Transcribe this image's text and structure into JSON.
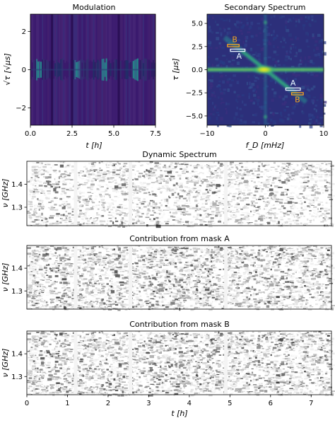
{
  "chart_data": [
    {
      "type": "heatmap",
      "title": "Modulation",
      "xlabel": "t [h]",
      "ylabel": "√τ [√μs]",
      "xlim": [
        0,
        7.5
      ],
      "ylim": [
        -2.9,
        2.9
      ],
      "x_ticks": [
        0,
        2.5,
        5,
        7.5
      ],
      "x_tick_labels": [
        "0.0",
        "2.5",
        "5.0",
        "7.5"
      ],
      "y_ticks": [
        2,
        0,
        -2
      ],
      "y_tick_labels": [
        "2",
        "0",
        "−2"
      ],
      "colormap": "viridis",
      "dark_vertical_gaps_h": [
        1.3,
        2.5,
        5.3
      ],
      "bright_segments_h": [
        0.5,
        2.8,
        4.4,
        6.3
      ]
    },
    {
      "type": "heatmap",
      "title": "Secondary Spectrum",
      "xlabel": "f_D [mHz]",
      "ylabel": "τ [μs]",
      "xlim": [
        -10,
        10
      ],
      "ylim": [
        -6,
        6
      ],
      "x_ticks": [
        -10,
        0,
        10
      ],
      "x_tick_labels": [
        "−10",
        "0",
        "10"
      ],
      "y_ticks": [
        5.0,
        2.5,
        0.0,
        -2.5,
        -5.0
      ],
      "y_tick_labels": [
        "5.0",
        "2.5",
        "0.0",
        "−2.5",
        "−5.0"
      ],
      "colormap": "viridis",
      "masks": [
        {
          "label": "B",
          "color": "#f5a623",
          "fd_range": [
            -6.5,
            -4.5
          ],
          "tau": 2.6
        },
        {
          "label": "A",
          "color": "#e8f4ff",
          "fd_range": [
            -6,
            -3.5
          ],
          "tau": 2.1
        },
        {
          "label": "A",
          "color": "#e8f4ff",
          "fd_range": [
            3.5,
            6
          ],
          "tau": -2.1
        },
        {
          "label": "B",
          "color": "#f5a623",
          "fd_range": [
            4.5,
            6.5
          ],
          "tau": -2.6
        }
      ]
    },
    {
      "type": "heatmap",
      "title": "Dynamic Spectrum",
      "ylabel": "ν [GHz]",
      "xlim": [
        0,
        7.5
      ],
      "ylim": [
        1.22,
        1.5
      ],
      "y_ticks": [
        1.4,
        1.3
      ],
      "y_tick_labels": [
        "1.4",
        "1.3"
      ],
      "colormap": "grey_r",
      "gaps_h": [
        1.2,
        2.55,
        4.9
      ]
    },
    {
      "type": "heatmap",
      "title": "Contribution from mask A",
      "ylabel": "ν [GHz]",
      "xlim": [
        0,
        7.5
      ],
      "ylim": [
        1.22,
        1.5
      ],
      "y_ticks": [
        1.4,
        1.3
      ],
      "y_tick_labels": [
        "1.4",
        "1.3"
      ],
      "colormap": "grey_r",
      "gaps_h": [
        1.2,
        2.55,
        4.9
      ]
    },
    {
      "type": "heatmap",
      "title": "Contribution from mask B",
      "xlabel": "t [h]",
      "ylabel": "ν [GHz]",
      "xlim": [
        0,
        7.5
      ],
      "ylim": [
        1.22,
        1.5
      ],
      "x_ticks": [
        0,
        1,
        2,
        3,
        4,
        5,
        6,
        7
      ],
      "x_tick_labels": [
        "0",
        "1",
        "2",
        "3",
        "4",
        "5",
        "6",
        "7"
      ],
      "y_ticks": [
        1.4,
        1.3
      ],
      "y_tick_labels": [
        "1.4",
        "1.3"
      ],
      "colormap": "grey_r",
      "gaps_h": [
        1.2,
        2.55,
        4.9
      ]
    }
  ]
}
